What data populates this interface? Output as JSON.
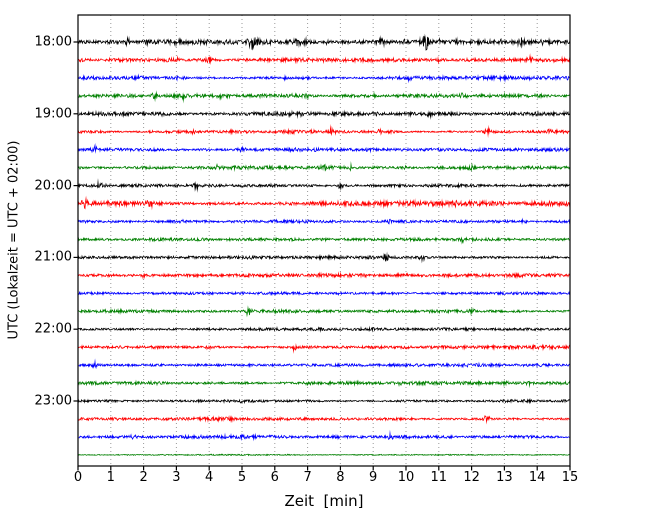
{
  "chart_data": {
    "type": "line",
    "subtype": "helicorder-seismogram",
    "title": "",
    "xlabel": "Zeit  [min]",
    "ylabel": "UTC (Lokalzeit = UTC + 02:00)",
    "x_range": [
      0,
      15
    ],
    "x_ticks": [
      "0",
      "1",
      "2",
      "3",
      "4",
      "5",
      "6",
      "7",
      "8",
      "9",
      "10",
      "11",
      "12",
      "13",
      "14",
      "15"
    ],
    "y_tick_labels": [
      "18:00",
      "19:00",
      "20:00",
      "21:00",
      "22:00",
      "23:00"
    ],
    "rows_per_hour": 4,
    "minutes_per_row": 15,
    "grid": {
      "vertical_dotted": true,
      "color": "#999999"
    },
    "trace_colors_cycle": [
      "#000000",
      "#ff0000",
      "#0000ff",
      "#008000"
    ],
    "rows": [
      {
        "start": "18:00",
        "color": "#000000",
        "noise": 1.7,
        "bursts": [
          {
            "t": 1.5,
            "a": 3.0,
            "w": 0.08
          },
          {
            "t": 2.1,
            "a": 1.5,
            "w": 0.05
          },
          {
            "t": 3.0,
            "a": 2.5,
            "w": 0.06
          },
          {
            "t": 4.1,
            "a": 1.5,
            "w": 0.05
          },
          {
            "t": 5.35,
            "a": 6.0,
            "w": 0.12
          },
          {
            "t": 6.7,
            "a": 3.5,
            "w": 0.07
          },
          {
            "t": 6.95,
            "a": 3.5,
            "w": 0.07
          },
          {
            "t": 7.6,
            "a": 2.0,
            "w": 0.05
          },
          {
            "t": 9.3,
            "a": 3.0,
            "w": 0.1
          },
          {
            "t": 10.0,
            "a": 2.0,
            "w": 0.06
          },
          {
            "t": 10.6,
            "a": 8.0,
            "w": 0.09
          },
          {
            "t": 11.0,
            "a": 3.0,
            "w": 0.06
          },
          {
            "t": 11.5,
            "a": 3.0,
            "w": 0.07
          },
          {
            "t": 12.9,
            "a": 2.5,
            "w": 0.06
          },
          {
            "t": 13.5,
            "a": 3.0,
            "w": 0.08
          },
          {
            "t": 14.2,
            "a": 2.5,
            "w": 0.06
          },
          {
            "t": 14.6,
            "a": 2.0,
            "w": 0.05
          }
        ]
      },
      {
        "start": "18:15",
        "color": "#ff0000",
        "noise": 1.7,
        "bursts": [
          {
            "t": 0.9,
            "a": 1.5,
            "w": 0.05
          },
          {
            "t": 3.0,
            "a": 1.8,
            "w": 0.06
          },
          {
            "t": 4.0,
            "a": 4.5,
            "w": 0.08
          },
          {
            "t": 7.0,
            "a": 1.5,
            "w": 0.05
          },
          {
            "t": 9.0,
            "a": 1.5,
            "w": 0.05
          },
          {
            "t": 11.0,
            "a": 1.5,
            "w": 0.05
          },
          {
            "t": 13.8,
            "a": 3.0,
            "w": 0.07
          },
          {
            "t": 14.5,
            "a": 1.5,
            "w": 0.05
          }
        ]
      },
      {
        "start": "18:30",
        "color": "#0000ff",
        "noise": 1.5,
        "bursts": [
          {
            "t": 1.9,
            "a": 1.5,
            "w": 0.05
          },
          {
            "t": 3.0,
            "a": 2.0,
            "w": 0.06
          },
          {
            "t": 6.3,
            "a": 1.5,
            "w": 0.05
          },
          {
            "t": 10.1,
            "a": 3.0,
            "w": 0.08
          },
          {
            "t": 11.5,
            "a": 1.5,
            "w": 0.05
          },
          {
            "t": 13.0,
            "a": 1.5,
            "w": 0.06
          }
        ]
      },
      {
        "start": "18:45",
        "color": "#008000",
        "noise": 1.5,
        "bursts": [
          {
            "t": 2.35,
            "a": 4.0,
            "w": 0.07
          },
          {
            "t": 3.2,
            "a": 2.5,
            "w": 0.06
          },
          {
            "t": 4.3,
            "a": 2.5,
            "w": 0.06
          },
          {
            "t": 6.9,
            "a": 3.0,
            "w": 0.08
          },
          {
            "t": 9.0,
            "a": 1.5,
            "w": 0.05
          },
          {
            "t": 11.75,
            "a": 3.5,
            "w": 0.07
          },
          {
            "t": 13.0,
            "a": 1.2,
            "w": 0.05
          }
        ]
      },
      {
        "start": "19:00",
        "color": "#000000",
        "noise": 1.5,
        "bursts": [
          {
            "t": 2.6,
            "a": 1.5,
            "w": 0.05
          },
          {
            "t": 6.8,
            "a": 1.5,
            "w": 0.05
          },
          {
            "t": 9.0,
            "a": 3.0,
            "w": 0.09
          },
          {
            "t": 10.7,
            "a": 2.5,
            "w": 0.07
          },
          {
            "t": 12.0,
            "a": 1.5,
            "w": 0.05
          }
        ]
      },
      {
        "start": "19:15",
        "color": "#ff0000",
        "noise": 1.6,
        "bursts": [
          {
            "t": 3.5,
            "a": 2.5,
            "w": 0.07
          },
          {
            "t": 5.0,
            "a": 1.5,
            "w": 0.05
          },
          {
            "t": 7.7,
            "a": 3.5,
            "w": 0.08
          },
          {
            "t": 9.2,
            "a": 1.8,
            "w": 0.06
          },
          {
            "t": 12.5,
            "a": 2.8,
            "w": 0.07
          },
          {
            "t": 14.4,
            "a": 2.8,
            "w": 0.07
          }
        ]
      },
      {
        "start": "19:30",
        "color": "#0000ff",
        "noise": 1.4,
        "bursts": [
          {
            "t": 0.5,
            "a": 3.5,
            "w": 0.07
          },
          {
            "t": 5.0,
            "a": 2.8,
            "w": 0.08
          },
          {
            "t": 7.35,
            "a": 2.0,
            "w": 0.06
          },
          {
            "t": 8.85,
            "a": 2.2,
            "w": 0.06
          },
          {
            "t": 12.0,
            "a": 1.2,
            "w": 0.05
          }
        ]
      },
      {
        "start": "19:45",
        "color": "#008000",
        "noise": 1.4,
        "bursts": [
          {
            "t": 4.2,
            "a": 2.0,
            "w": 0.06
          },
          {
            "t": 7.5,
            "a": 2.8,
            "w": 0.07
          },
          {
            "t": 8.3,
            "a": 2.0,
            "w": 0.06
          },
          {
            "t": 10.0,
            "a": 1.3,
            "w": 0.05
          },
          {
            "t": 12.0,
            "a": 2.8,
            "w": 0.07
          }
        ]
      },
      {
        "start": "20:00",
        "color": "#000000",
        "noise": 1.3,
        "bursts": [
          {
            "t": 0.65,
            "a": 3.5,
            "w": 0.07
          },
          {
            "t": 3.6,
            "a": 3.5,
            "w": 0.08
          },
          {
            "t": 5.0,
            "a": 1.2,
            "w": 0.05
          },
          {
            "t": 8.0,
            "a": 2.8,
            "w": 0.08
          }
        ]
      },
      {
        "start": "20:15",
        "color": "#ff0000",
        "noise": 1.7,
        "bursts": [
          {
            "t": 0.2,
            "a": 4.5,
            "w": 0.08
          },
          {
            "t": 2.2,
            "a": 3.8,
            "w": 0.08
          },
          {
            "t": 5.0,
            "a": 1.5,
            "w": 0.05
          },
          {
            "t": 8.0,
            "a": 1.5,
            "w": 0.05
          },
          {
            "t": 11.5,
            "a": 3.0,
            "w": 0.08
          },
          {
            "t": 12.4,
            "a": 2.0,
            "w": 0.06
          }
        ]
      },
      {
        "start": "20:30",
        "color": "#0000ff",
        "noise": 1.4,
        "bursts": [
          {
            "t": 3.1,
            "a": 2.8,
            "w": 0.07
          },
          {
            "t": 6.0,
            "a": 1.3,
            "w": 0.05
          },
          {
            "t": 9.5,
            "a": 2.8,
            "w": 0.08
          },
          {
            "t": 13.6,
            "a": 2.8,
            "w": 0.07
          }
        ]
      },
      {
        "start": "20:45",
        "color": "#008000",
        "noise": 1.2,
        "bursts": [
          {
            "t": 4.0,
            "a": 1.2,
            "w": 0.05
          },
          {
            "t": 11.7,
            "a": 3.0,
            "w": 0.07
          }
        ]
      },
      {
        "start": "21:00",
        "color": "#000000",
        "noise": 1.2,
        "bursts": [
          {
            "t": 9.4,
            "a": 3.5,
            "w": 0.08
          },
          {
            "t": 10.5,
            "a": 2.8,
            "w": 0.07
          }
        ]
      },
      {
        "start": "21:15",
        "color": "#ff0000",
        "noise": 1.5,
        "bursts": [
          {
            "t": 2.0,
            "a": 1.3,
            "w": 0.05
          },
          {
            "t": 6.0,
            "a": 1.3,
            "w": 0.05
          },
          {
            "t": 10.0,
            "a": 1.2,
            "w": 0.05
          }
        ]
      },
      {
        "start": "21:30",
        "color": "#0000ff",
        "noise": 1.1,
        "bursts": [
          {
            "t": 1.5,
            "a": 1.2,
            "w": 0.05
          },
          {
            "t": 8.0,
            "a": 1.1,
            "w": 0.05
          }
        ]
      },
      {
        "start": "21:45",
        "color": "#008000",
        "noise": 1.3,
        "bursts": [
          {
            "t": 5.2,
            "a": 4.5,
            "w": 0.07
          },
          {
            "t": 12.0,
            "a": 3.5,
            "w": 0.08
          }
        ]
      },
      {
        "start": "22:00",
        "color": "#000000",
        "noise": 1.1,
        "bursts": [
          {
            "t": 3.0,
            "a": 1.1,
            "w": 0.05
          },
          {
            "t": 9.0,
            "a": 1.2,
            "w": 0.05
          }
        ]
      },
      {
        "start": "22:15",
        "color": "#ff0000",
        "noise": 1.4,
        "bursts": [
          {
            "t": 4.0,
            "a": 2.0,
            "w": 0.07
          },
          {
            "t": 6.6,
            "a": 2.8,
            "w": 0.06
          },
          {
            "t": 10.0,
            "a": 1.3,
            "w": 0.05
          }
        ]
      },
      {
        "start": "22:30",
        "color": "#0000ff",
        "noise": 1.2,
        "bursts": [
          {
            "t": 0.5,
            "a": 2.8,
            "w": 0.07
          },
          {
            "t": 6.0,
            "a": 1.2,
            "w": 0.05
          }
        ]
      },
      {
        "start": "22:45",
        "color": "#008000",
        "noise": 1.3,
        "bursts": [
          {
            "t": 7.0,
            "a": 1.8,
            "w": 0.06
          },
          {
            "t": 9.8,
            "a": 1.5,
            "w": 0.08
          },
          {
            "t": 13.0,
            "a": 1.8,
            "w": 0.07
          },
          {
            "t": 13.7,
            "a": 2.5,
            "w": 0.06
          }
        ]
      },
      {
        "start": "23:00",
        "color": "#000000",
        "noise": 1.0,
        "bursts": [
          {
            "t": 5.0,
            "a": 1.1,
            "w": 0.05
          }
        ]
      },
      {
        "start": "23:15",
        "color": "#ff0000",
        "noise": 1.3,
        "bursts": [
          {
            "t": 12.45,
            "a": 3.5,
            "w": 0.07
          }
        ]
      },
      {
        "start": "23:30",
        "color": "#0000ff",
        "noise": 1.3,
        "bursts": [
          {
            "t": 1.7,
            "a": 1.5,
            "w": 0.12
          },
          {
            "t": 9.5,
            "a": 2.8,
            "w": 0.08
          }
        ]
      },
      {
        "start": "23:45",
        "color": "#008000",
        "noise": 0.45,
        "bursts": []
      }
    ]
  }
}
